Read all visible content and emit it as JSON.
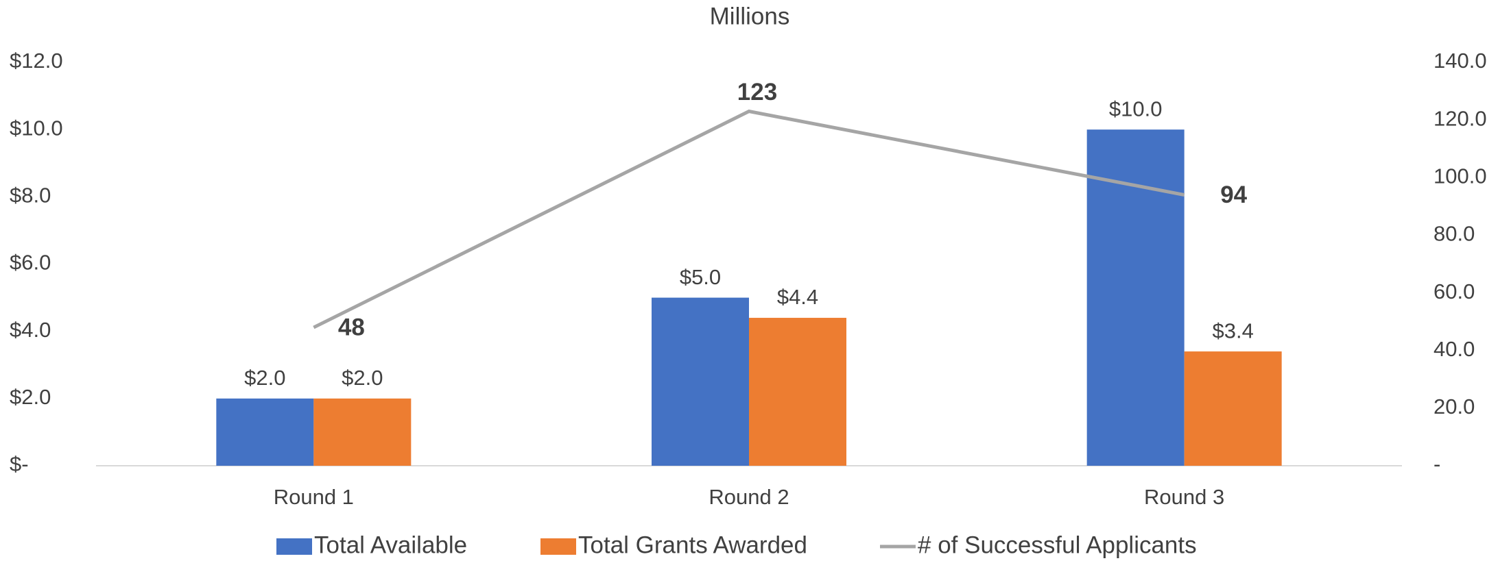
{
  "chart_data": {
    "type": "bar",
    "title": "Millions",
    "categories": [
      "Round 1",
      "Round 2",
      "Round 3"
    ],
    "series": [
      {
        "name": "Total Available",
        "color": "#4472c4",
        "values": [
          2.0,
          5.0,
          10.0
        ],
        "value_labels": [
          "$2.0",
          "$5.0",
          "$10.0"
        ]
      },
      {
        "name": "Total Grants Awarded",
        "color": "#ed7d31",
        "values": [
          2.0,
          4.4,
          3.4
        ],
        "value_labels": [
          "$2.0",
          "$4.4",
          "$3.4"
        ]
      },
      {
        "name": "# of Successful Applicants",
        "type": "line",
        "axis": "y2",
        "color": "#a5a5a5",
        "values": [
          48,
          123,
          94
        ]
      }
    ],
    "ylim": [
      0,
      12
    ],
    "yticks": [
      {
        "value": 0,
        "label": "$-"
      },
      {
        "value": 2,
        "label": "$2.0"
      },
      {
        "value": 4,
        "label": "$4.0"
      },
      {
        "value": 6,
        "label": "$6.0"
      },
      {
        "value": 8,
        "label": "$8.0"
      },
      {
        "value": 10,
        "label": "$10.0"
      },
      {
        "value": 12,
        "label": "$12.0"
      }
    ],
    "y2lim": [
      0,
      140
    ],
    "y2ticks": [
      {
        "value": 0,
        "label": "-"
      },
      {
        "value": 20,
        "label": "20.0"
      },
      {
        "value": 40,
        "label": "40.0"
      },
      {
        "value": 60,
        "label": "60.0"
      },
      {
        "value": 80,
        "label": "80.0"
      },
      {
        "value": 100,
        "label": "100.0"
      },
      {
        "value": 120,
        "label": "120.0"
      },
      {
        "value": 140,
        "label": "140.0"
      }
    ],
    "legend": "bottom",
    "grid": false
  }
}
